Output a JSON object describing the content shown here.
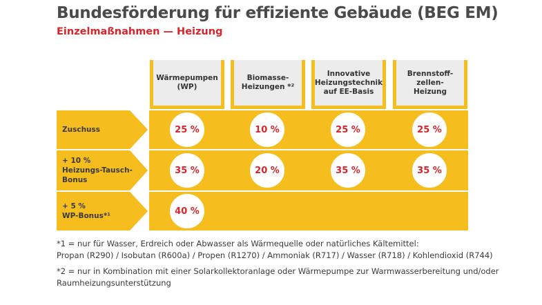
{
  "title": "Bundesförderung für effiziente Gebäude (BEG EM)",
  "subtitle": "Einzelmaßnahmen — Heizung",
  "columns": [
    {
      "label": "Wärmepumpen (WP)"
    },
    {
      "label": "Biomasse-Heizungen *²"
    },
    {
      "label": "Innovative Heizungstechnik auf EE-Basis"
    },
    {
      "label": "Brennstoff-zellen-Heizung"
    }
  ],
  "column_lines": [
    [
      "Wärmepumpen",
      "(WP)"
    ],
    [
      "Biomasse-",
      "Heizungen *²"
    ],
    [
      "Innovative",
      "Heizungstechnik",
      "auf EE-Basis"
    ],
    [
      "Brennstoff-",
      "zellen-",
      "Heizung"
    ]
  ],
  "rows": [
    {
      "label_lines": [
        "Zuschuss"
      ],
      "values": [
        "25 %",
        "10 %",
        "25 %",
        "25 %"
      ]
    },
    {
      "label_lines": [
        "+ 10 %",
        "Heizungs-Tausch-",
        "Bonus"
      ],
      "values": [
        "35 %",
        "20 %",
        "35 %",
        "35 %"
      ]
    },
    {
      "label_lines": [
        "+ 5 %",
        "WP-Bonus*¹"
      ],
      "values": [
        "40 %"
      ]
    }
  ],
  "footnotes": {
    "f1_line1": "*1 = nur für Wasser, Erdreich oder Abwasser als Wärmequelle oder natürliches Kältemittel:",
    "f1_line2": "Propan (R290) / Isobutan (R600a) / Propen (R1270) / Ammoniak (R717) / Wasser (R718) / Kohlendioxid (R744)",
    "f2_line1": "*2 = nur in Kombination mit einer Solarkollektoranlage oder Wärmepumpe zur Warmwasserbereitung und/oder",
    "f2_line2": "Raumheizungsunterstützung"
  },
  "colors": {
    "accent": "#f5bd1e",
    "value_text": "#d8242a",
    "header_bg": "#ececec"
  }
}
